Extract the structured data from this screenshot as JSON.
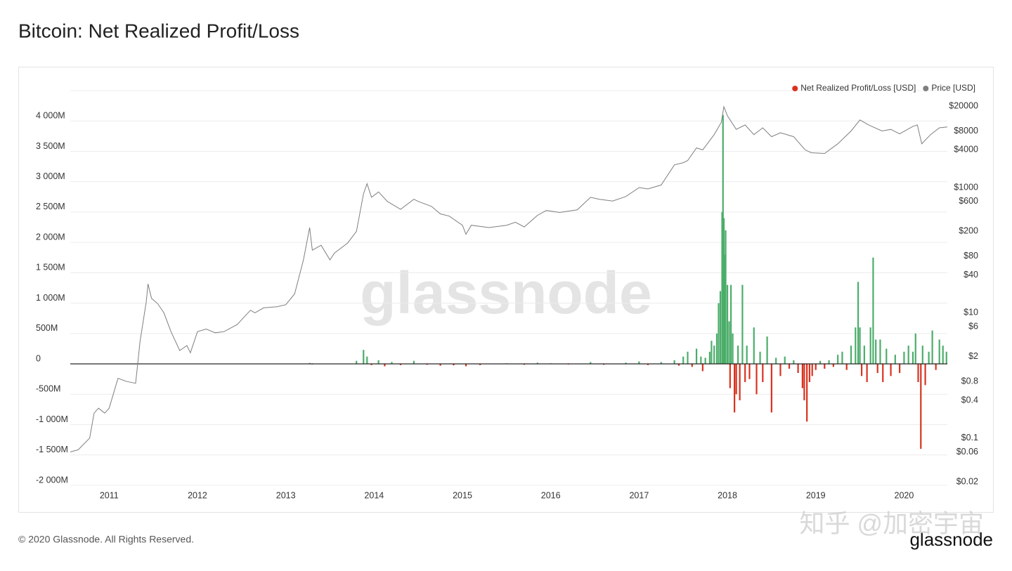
{
  "chart_data": {
    "type": "line",
    "title": "Bitcoin: Net Realized Profit/Loss",
    "watermark": "glassnode",
    "overlay_watermark": "知乎 @加密宇宙",
    "footer": "© 2020 Glassnode. All Rights Reserved.",
    "logo": "glassnode",
    "xlim": [
      2010.56,
      2020.49
    ],
    "xticks": [
      2011,
      2012,
      2013,
      2014,
      2015,
      2016,
      2017,
      2018,
      2019,
      2020
    ],
    "ylim": [
      -2000,
      4500
    ],
    "yticks": [
      {
        "value": -2000,
        "label": "-2 000M"
      },
      {
        "value": -1500,
        "label": "-1 500M"
      },
      {
        "value": -1000,
        "label": "-1 000M"
      },
      {
        "value": -500,
        "label": "-500M"
      },
      0,
      {
        "value": 500,
        "label": "500M"
      },
      {
        "value": 1000,
        "label": "1 000M"
      },
      {
        "value": 1500,
        "label": "1 500M"
      },
      {
        "value": 2000,
        "label": "2 000M"
      },
      {
        "value": 2500,
        "label": "2 500M"
      },
      {
        "value": 3000,
        "label": "3 000M"
      },
      {
        "value": 3500,
        "label": "3 500M"
      },
      {
        "value": 4000,
        "label": "4 000M"
      }
    ],
    "y2lim": [
      0.0176,
      35340
    ],
    "y2log": true,
    "y2ticks": [
      {
        "value": 0.02,
        "label": "$0.02"
      },
      {
        "value": 0.06,
        "label": "$0.06"
      },
      {
        "value": 0.1,
        "label": "$0.1"
      },
      {
        "value": 0.4,
        "label": "$0.4"
      },
      {
        "value": 0.8,
        "label": "$0.8"
      },
      {
        "value": 2,
        "label": "$2"
      },
      {
        "value": 6,
        "label": "$6"
      },
      {
        "value": 10,
        "label": "$10"
      },
      {
        "value": 40,
        "label": "$40"
      },
      {
        "value": 80,
        "label": "$80"
      },
      {
        "value": 200,
        "label": "$200"
      },
      {
        "value": 600,
        "label": "$600"
      },
      {
        "value": 1000,
        "label": "$1000"
      },
      {
        "value": 4000,
        "label": "$4000"
      },
      {
        "value": 8000,
        "label": "$8000"
      },
      {
        "value": 20000,
        "label": "$20000"
      }
    ],
    "grid": true,
    "legend": "top-right",
    "series": [
      {
        "name": "Net Realized Profit/Loss [USD]",
        "color": "#d9321f",
        "positive_color": "#4cad6b",
        "x": [
          2010.6,
          2011.0,
          2011.45,
          2012.0,
          2012.5,
          2013.0,
          2013.27,
          2013.3,
          2013.5,
          2013.8,
          2013.88,
          2013.92,
          2013.97,
          2014.05,
          2014.12,
          2014.2,
          2014.3,
          2014.45,
          2014.6,
          2014.75,
          2014.9,
          2015.04,
          2015.2,
          2015.5,
          2015.7,
          2015.85,
          2016.0,
          2016.2,
          2016.45,
          2016.6,
          2016.85,
          2017.0,
          2017.1,
          2017.25,
          2017.4,
          2017.45,
          2017.5,
          2017.55,
          2017.6,
          2017.65,
          2017.7,
          2017.72,
          2017.75,
          2017.8,
          2017.82,
          2017.85,
          2017.88,
          2017.9,
          2017.92,
          2017.94,
          2017.95,
          2017.96,
          2017.97,
          2017.98,
          2018.0,
          2018.02,
          2018.03,
          2018.04,
          2018.06,
          2018.08,
          2018.1,
          2018.12,
          2018.14,
          2018.17,
          2018.2,
          2018.22,
          2018.25,
          2018.3,
          2018.33,
          2018.37,
          2018.4,
          2018.45,
          2018.5,
          2018.55,
          2018.6,
          2018.65,
          2018.7,
          2018.75,
          2018.8,
          2018.85,
          2018.87,
          2018.9,
          2018.93,
          2018.96,
          2019.0,
          2019.05,
          2019.1,
          2019.15,
          2019.2,
          2019.25,
          2019.3,
          2019.35,
          2019.4,
          2019.45,
          2019.48,
          2019.5,
          2019.52,
          2019.55,
          2019.58,
          2019.62,
          2019.65,
          2019.68,
          2019.7,
          2019.73,
          2019.76,
          2019.8,
          2019.85,
          2019.9,
          2019.95,
          2020.0,
          2020.05,
          2020.1,
          2020.13,
          2020.16,
          2020.19,
          2020.21,
          2020.24,
          2020.28,
          2020.32,
          2020.36,
          2020.4,
          2020.44,
          2020.48
        ],
        "values": [
          2,
          3,
          5,
          2,
          3,
          5,
          15,
          -10,
          3,
          50,
          230,
          120,
          -20,
          60,
          -40,
          30,
          -20,
          50,
          -15,
          -30,
          -25,
          -40,
          -20,
          10,
          -15,
          20,
          10,
          -10,
          30,
          -15,
          20,
          40,
          -20,
          30,
          60,
          -30,
          120,
          200,
          -50,
          250,
          120,
          -120,
          100,
          200,
          380,
          300,
          500,
          1000,
          1200,
          2500,
          4100,
          2400,
          1800,
          2200,
          1300,
          700,
          -400,
          1300,
          500,
          -800,
          -500,
          300,
          -600,
          1300,
          -300,
          300,
          -250,
          600,
          -500,
          200,
          -300,
          450,
          -800,
          100,
          -200,
          120,
          -80,
          60,
          -150,
          -400,
          -600,
          -950,
          -300,
          -200,
          -100,
          50,
          -80,
          60,
          -50,
          150,
          200,
          -100,
          300,
          600,
          1350,
          600,
          -200,
          300,
          -300,
          600,
          1750,
          400,
          -150,
          400,
          -300,
          250,
          -200,
          150,
          -150,
          200,
          300,
          200,
          500,
          -300,
          -1400,
          300,
          -350,
          200,
          550,
          -100,
          400,
          300,
          200
        ]
      },
      {
        "name": "Price [USD]",
        "color": "#7f7f7f",
        "axis": "y2",
        "x": [
          2010.56,
          2010.65,
          2010.78,
          2010.83,
          2010.88,
          2010.95,
          2011.0,
          2011.1,
          2011.2,
          2011.3,
          2011.35,
          2011.42,
          2011.44,
          2011.48,
          2011.55,
          2011.62,
          2011.7,
          2011.8,
          2011.88,
          2011.92,
          2012.0,
          2012.1,
          2012.2,
          2012.3,
          2012.45,
          2012.6,
          2012.65,
          2012.75,
          2012.9,
          2013.0,
          2013.1,
          2013.2,
          2013.27,
          2013.3,
          2013.4,
          2013.5,
          2013.55,
          2013.7,
          2013.8,
          2013.88,
          2013.92,
          2013.97,
          2014.05,
          2014.15,
          2014.3,
          2014.45,
          2014.5,
          2014.65,
          2014.75,
          2014.85,
          2015.0,
          2015.04,
          2015.1,
          2015.3,
          2015.5,
          2015.6,
          2015.7,
          2015.85,
          2015.95,
          2016.1,
          2016.3,
          2016.45,
          2016.55,
          2016.7,
          2016.85,
          2017.0,
          2017.1,
          2017.25,
          2017.4,
          2017.5,
          2017.55,
          2017.65,
          2017.72,
          2017.85,
          2017.93,
          2017.96,
          2018.0,
          2018.1,
          2018.2,
          2018.3,
          2018.4,
          2018.5,
          2018.6,
          2018.75,
          2018.88,
          2018.95,
          2019.1,
          2019.25,
          2019.4,
          2019.5,
          2019.6,
          2019.75,
          2019.85,
          2019.95,
          2020.1,
          2020.15,
          2020.2,
          2020.3,
          2020.4,
          2020.49
        ],
        "values": [
          0.06,
          0.065,
          0.1,
          0.25,
          0.3,
          0.25,
          0.3,
          0.9,
          0.8,
          0.75,
          3.5,
          15,
          29,
          17,
          14,
          10,
          5,
          2.5,
          3,
          2.3,
          5,
          5.5,
          4.8,
          5,
          6.5,
          11,
          10,
          12,
          12.5,
          13.5,
          20,
          70,
          230,
          100,
          120,
          70,
          90,
          130,
          200,
          800,
          1150,
          700,
          850,
          600,
          450,
          650,
          600,
          500,
          380,
          350,
          250,
          180,
          250,
          230,
          250,
          280,
          235,
          360,
          430,
          400,
          440,
          700,
          650,
          610,
          720,
          1000,
          950,
          1100,
          2300,
          2500,
          2700,
          4300,
          4000,
          7000,
          11000,
          19500,
          14000,
          8500,
          10000,
          7000,
          9000,
          6500,
          7500,
          6500,
          4000,
          3600,
          3500,
          5000,
          8000,
          12000,
          10000,
          8000,
          8500,
          7200,
          9500,
          10000,
          5000,
          7000,
          9000,
          9300
        ]
      }
    ]
  }
}
